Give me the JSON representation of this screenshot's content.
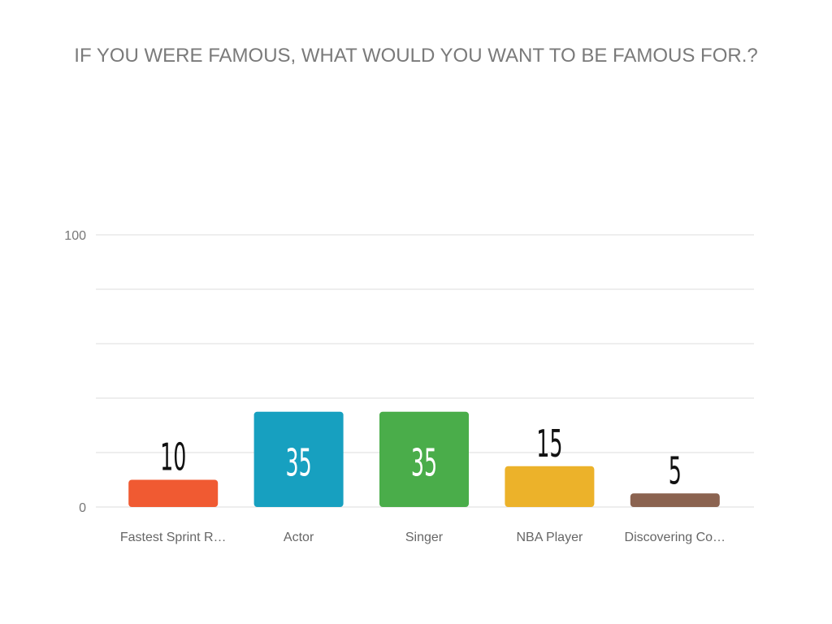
{
  "chart_data": {
    "type": "bar",
    "title": "IF YOU WERE FAMOUS, WHAT WOULD YOU WANT TO BE FAMOUS FOR.?",
    "categories": [
      "Fastest Sprint R…",
      "Actor",
      "Singer",
      "NBA Player",
      "Discovering Co…"
    ],
    "values": [
      10,
      35,
      35,
      15,
      5
    ],
    "colors": [
      "#f05a32",
      "#17a0c0",
      "#4aad4a",
      "#ecb22a",
      "#8b6350"
    ],
    "ylim": [
      0,
      100
    ],
    "yticks": [
      0,
      100
    ],
    "gridlines": [
      20,
      40,
      60,
      80
    ],
    "grid": true
  }
}
